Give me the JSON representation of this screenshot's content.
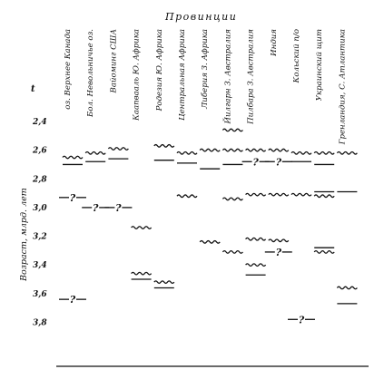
{
  "chart_data": {
    "type": "diagram",
    "header": "Провинции",
    "y_unit_label": "t",
    "ylabel": "Возраст, млрд. лет",
    "ylim": [
      2.28,
      4.05
    ],
    "yticks": [
      2.4,
      2.6,
      2.8,
      3.0,
      3.2,
      3.4,
      3.6,
      3.8
    ],
    "ytick_labels": [
      "2,4",
      "2,6",
      "2,8",
      "3,0",
      "3,2",
      "3,4",
      "3,6",
      "3,8"
    ],
    "categories": [
      "оз. Верхнее Канада",
      "Бол. Невольничье оз.",
      "Вайоминг США",
      "Каапвааль Ю. Африка",
      "Родезия Ю. Африка",
      "Центральная Африка",
      "Либерия З. Африка",
      "Йилгарн З. Австралия",
      "Пилбара З. Австралия",
      "Индия",
      "Кольский п/о",
      "Украинский щит",
      "Гренландия, С. Атлантика"
    ],
    "legend": {
      "wavy": "wavy line",
      "line": "straight line",
      "uncertain": "?"
    },
    "marks": [
      {
        "col": 0,
        "age": 2.65,
        "style": "wavy"
      },
      {
        "col": 0,
        "age": 2.7,
        "style": "line"
      },
      {
        "col": 0,
        "age": 2.93,
        "style": "uncertain"
      },
      {
        "col": 0,
        "age": 3.64,
        "style": "uncertain"
      },
      {
        "col": 1,
        "age": 2.62,
        "style": "wavy"
      },
      {
        "col": 1,
        "age": 2.68,
        "style": "line"
      },
      {
        "col": 1,
        "age": 3.0,
        "style": "uncertain"
      },
      {
        "col": 2,
        "age": 2.59,
        "style": "wavy"
      },
      {
        "col": 2,
        "age": 2.66,
        "style": "line"
      },
      {
        "col": 2,
        "age": 3.0,
        "style": "uncertain"
      },
      {
        "col": 3,
        "age": 3.14,
        "style": "wavy"
      },
      {
        "col": 3,
        "age": 3.46,
        "style": "wavy"
      },
      {
        "col": 3,
        "age": 3.5,
        "style": "line"
      },
      {
        "col": 4,
        "age": 2.57,
        "style": "wavy"
      },
      {
        "col": 4,
        "age": 2.67,
        "style": "line"
      },
      {
        "col": 4,
        "age": 3.52,
        "style": "wavy"
      },
      {
        "col": 4,
        "age": 3.56,
        "style": "line"
      },
      {
        "col": 5,
        "age": 2.62,
        "style": "wavy"
      },
      {
        "col": 5,
        "age": 2.69,
        "style": "line"
      },
      {
        "col": 5,
        "age": 2.92,
        "style": "wavy"
      },
      {
        "col": 6,
        "age": 2.6,
        "style": "wavy"
      },
      {
        "col": 6,
        "age": 2.73,
        "style": "line"
      },
      {
        "col": 6,
        "age": 3.24,
        "style": "wavy"
      },
      {
        "col": 7,
        "age": 2.46,
        "style": "wavy"
      },
      {
        "col": 7,
        "age": 2.6,
        "style": "wavy"
      },
      {
        "col": 7,
        "age": 2.7,
        "style": "line"
      },
      {
        "col": 7,
        "age": 2.94,
        "style": "wavy"
      },
      {
        "col": 7,
        "age": 3.31,
        "style": "wavy"
      },
      {
        "col": 8,
        "age": 2.6,
        "style": "wavy"
      },
      {
        "col": 8,
        "age": 2.68,
        "style": "uncertain"
      },
      {
        "col": 8,
        "age": 2.91,
        "style": "wavy"
      },
      {
        "col": 8,
        "age": 3.22,
        "style": "wavy"
      },
      {
        "col": 8,
        "age": 3.4,
        "style": "wavy"
      },
      {
        "col": 8,
        "age": 3.47,
        "style": "line"
      },
      {
        "col": 9,
        "age": 2.6,
        "style": "wavy"
      },
      {
        "col": 9,
        "age": 2.68,
        "style": "uncertain"
      },
      {
        "col": 9,
        "age": 2.91,
        "style": "wavy"
      },
      {
        "col": 9,
        "age": 3.23,
        "style": "wavy"
      },
      {
        "col": 9,
        "age": 3.31,
        "style": "uncertain"
      },
      {
        "col": 10,
        "age": 2.62,
        "style": "wavy"
      },
      {
        "col": 10,
        "age": 2.68,
        "style": "line"
      },
      {
        "col": 10,
        "age": 2.91,
        "style": "wavy"
      },
      {
        "col": 10,
        "age": 3.78,
        "style": "uncertain"
      },
      {
        "col": 11,
        "age": 2.62,
        "style": "wavy"
      },
      {
        "col": 11,
        "age": 2.7,
        "style": "line"
      },
      {
        "col": 11,
        "age": 2.89,
        "style": "line"
      },
      {
        "col": 11,
        "age": 2.92,
        "style": "wavy"
      },
      {
        "col": 11,
        "age": 3.28,
        "style": "line"
      },
      {
        "col": 11,
        "age": 3.31,
        "style": "wavy"
      },
      {
        "col": 12,
        "age": 2.62,
        "style": "wavy"
      },
      {
        "col": 12,
        "age": 2.89,
        "style": "line"
      },
      {
        "col": 12,
        "age": 3.56,
        "style": "wavy"
      },
      {
        "col": 12,
        "age": 3.67,
        "style": "line"
      }
    ]
  }
}
